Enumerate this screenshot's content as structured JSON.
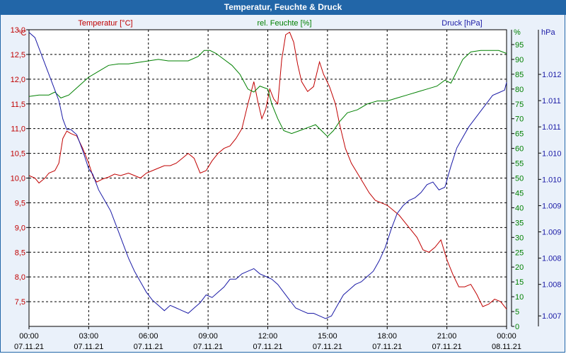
{
  "title": "Temperatur, Feuchte & Druck",
  "chart_data": {
    "type": "line",
    "title": "Temperatur, Feuchte & Druck",
    "x_ticks": [
      {
        "h": 0,
        "time": "00:00",
        "date": "07.11.21"
      },
      {
        "h": 3,
        "time": "03:00",
        "date": "07.11.21"
      },
      {
        "h": 6,
        "time": "06:00",
        "date": "07.11.21"
      },
      {
        "h": 9,
        "time": "09:00",
        "date": "07.11.21"
      },
      {
        "h": 12,
        "time": "12:00",
        "date": "07.11.21"
      },
      {
        "h": 15,
        "time": "15:00",
        "date": "07.11.21"
      },
      {
        "h": 18,
        "time": "18:00",
        "date": "07.11.21"
      },
      {
        "h": 21,
        "time": "21:00",
        "date": "07.11.21"
      },
      {
        "h": 24,
        "time": "00:00",
        "date": "08.11.21"
      }
    ],
    "x_range": [
      0,
      24
    ],
    "axes": {
      "temp": {
        "label": "Temperatur [°C]",
        "unit": "°C",
        "color": "#c00000",
        "range": [
          7.0,
          13.0
        ],
        "ticks": [
          "7,5",
          "8,0",
          "8,5",
          "9,0",
          "9,5",
          "10,0",
          "10,5",
          "11,0",
          "11,5",
          "12,0",
          "12,5",
          "13,0"
        ],
        "tick_values": [
          7.5,
          8.0,
          8.5,
          9.0,
          9.5,
          10.0,
          10.5,
          11.0,
          11.5,
          12.0,
          12.5,
          13.0
        ]
      },
      "hum": {
        "label": "rel. Feuchte [%]",
        "unit": "%",
        "color": "#008000",
        "range": [
          0,
          100
        ],
        "ticks": [
          "0",
          "5",
          "10",
          "15",
          "20",
          "25",
          "30",
          "35",
          "40",
          "45",
          "50",
          "55",
          "60",
          "65",
          "70",
          "75",
          "80",
          "85",
          "90",
          "95"
        ],
        "tick_values": [
          0,
          5,
          10,
          15,
          20,
          25,
          30,
          35,
          40,
          45,
          50,
          55,
          60,
          65,
          70,
          75,
          80,
          85,
          90,
          95
        ]
      },
      "press": {
        "label": "Druck [hPa]",
        "unit": "hPa",
        "color": "#1a1aa6",
        "range": [
          1006.7,
          1012.35
        ],
        "ticks": [
          "1.007",
          "1.008",
          "1.008",
          "1.009",
          "1.009",
          "1.010",
          "1.010",
          "1.011",
          "1.011",
          "1.012"
        ],
        "tick_values": [
          1006.9,
          1007.5,
          1008.0,
          1008.5,
          1009.0,
          1009.5,
          1010.0,
          1010.5,
          1011.0,
          1011.5
        ]
      }
    },
    "series": [
      {
        "name": "Temperatur",
        "axis": "temp",
        "color": "#c00000",
        "points": [
          [
            0,
            10.05
          ],
          [
            0.3,
            10.0
          ],
          [
            0.5,
            9.9
          ],
          [
            0.8,
            10.0
          ],
          [
            1.0,
            10.1
          ],
          [
            1.3,
            10.15
          ],
          [
            1.5,
            10.3
          ],
          [
            1.7,
            10.8
          ],
          [
            1.9,
            10.95
          ],
          [
            2.1,
            10.9
          ],
          [
            2.4,
            10.85
          ],
          [
            2.7,
            10.6
          ],
          [
            3.0,
            10.3
          ],
          [
            3.2,
            10.05
          ],
          [
            3.4,
            9.92
          ],
          [
            3.7,
            9.98
          ],
          [
            4.0,
            10.02
          ],
          [
            4.3,
            10.08
          ],
          [
            4.6,
            10.05
          ],
          [
            5.0,
            10.1
          ],
          [
            5.3,
            10.05
          ],
          [
            5.6,
            10.0
          ],
          [
            5.9,
            10.1
          ],
          [
            6.2,
            10.15
          ],
          [
            6.5,
            10.2
          ],
          [
            6.8,
            10.25
          ],
          [
            7.1,
            10.25
          ],
          [
            7.4,
            10.3
          ],
          [
            7.7,
            10.4
          ],
          [
            8.0,
            10.5
          ],
          [
            8.3,
            10.4
          ],
          [
            8.6,
            10.1
          ],
          [
            8.9,
            10.15
          ],
          [
            9.2,
            10.35
          ],
          [
            9.5,
            10.5
          ],
          [
            9.8,
            10.6
          ],
          [
            10.1,
            10.65
          ],
          [
            10.4,
            10.8
          ],
          [
            10.7,
            11.0
          ],
          [
            11.0,
            11.5
          ],
          [
            11.3,
            11.95
          ],
          [
            11.5,
            11.55
          ],
          [
            11.7,
            11.2
          ],
          [
            11.9,
            11.4
          ],
          [
            12.1,
            11.8
          ],
          [
            12.3,
            11.6
          ],
          [
            12.5,
            11.5
          ],
          [
            12.7,
            12.4
          ],
          [
            12.9,
            12.9
          ],
          [
            13.1,
            12.95
          ],
          [
            13.3,
            12.75
          ],
          [
            13.5,
            12.3
          ],
          [
            13.7,
            11.95
          ],
          [
            14.0,
            11.75
          ],
          [
            14.3,
            11.85
          ],
          [
            14.6,
            12.35
          ],
          [
            14.8,
            12.1
          ],
          [
            15.1,
            11.85
          ],
          [
            15.4,
            11.5
          ],
          [
            15.6,
            11.1
          ],
          [
            15.9,
            10.6
          ],
          [
            16.2,
            10.3
          ],
          [
            16.5,
            10.1
          ],
          [
            16.8,
            9.9
          ],
          [
            17.1,
            9.7
          ],
          [
            17.4,
            9.55
          ],
          [
            17.7,
            9.5
          ],
          [
            18.0,
            9.45
          ],
          [
            18.3,
            9.35
          ],
          [
            18.6,
            9.25
          ],
          [
            18.9,
            9.1
          ],
          [
            19.2,
            8.95
          ],
          [
            19.5,
            8.8
          ],
          [
            19.8,
            8.55
          ],
          [
            20.1,
            8.5
          ],
          [
            20.4,
            8.6
          ],
          [
            20.7,
            8.75
          ],
          [
            21.0,
            8.35
          ],
          [
            21.3,
            8.05
          ],
          [
            21.6,
            7.8
          ],
          [
            21.9,
            7.8
          ],
          [
            22.2,
            7.85
          ],
          [
            22.5,
            7.65
          ],
          [
            22.8,
            7.4
          ],
          [
            23.1,
            7.45
          ],
          [
            23.4,
            7.55
          ],
          [
            23.7,
            7.5
          ],
          [
            24.0,
            7.35
          ]
        ]
      },
      {
        "name": "rel. Feuchte",
        "axis": "hum",
        "color": "#008000",
        "points": [
          [
            0,
            77.5
          ],
          [
            0.5,
            78
          ],
          [
            1.0,
            78
          ],
          [
            1.3,
            79
          ],
          [
            1.6,
            77
          ],
          [
            2.0,
            78
          ],
          [
            2.5,
            81
          ],
          [
            3.0,
            84
          ],
          [
            3.5,
            86
          ],
          [
            4.0,
            88
          ],
          [
            4.5,
            88.5
          ],
          [
            5.0,
            88.5
          ],
          [
            5.5,
            89
          ],
          [
            6.0,
            89.5
          ],
          [
            6.5,
            90
          ],
          [
            7.0,
            89.5
          ],
          [
            7.5,
            89.5
          ],
          [
            8.0,
            89.5
          ],
          [
            8.5,
            91
          ],
          [
            8.8,
            93
          ],
          [
            9.1,
            93
          ],
          [
            9.4,
            92
          ],
          [
            9.8,
            90
          ],
          [
            10.2,
            88
          ],
          [
            10.6,
            85
          ],
          [
            11.0,
            80
          ],
          [
            11.3,
            79
          ],
          [
            11.6,
            81
          ],
          [
            12.0,
            80
          ],
          [
            12.2,
            75
          ],
          [
            12.5,
            70
          ],
          [
            12.8,
            66
          ],
          [
            13.2,
            65
          ],
          [
            13.6,
            66
          ],
          [
            14.0,
            67
          ],
          [
            14.4,
            68
          ],
          [
            14.7,
            66
          ],
          [
            15.0,
            64
          ],
          [
            15.3,
            66
          ],
          [
            15.6,
            69
          ],
          [
            16.0,
            72
          ],
          [
            16.5,
            73
          ],
          [
            17.0,
            75
          ],
          [
            17.5,
            76
          ],
          [
            18.0,
            76
          ],
          [
            18.5,
            77
          ],
          [
            19.0,
            78
          ],
          [
            19.5,
            79
          ],
          [
            20.0,
            80
          ],
          [
            20.5,
            81
          ],
          [
            20.9,
            83
          ],
          [
            21.2,
            82
          ],
          [
            21.5,
            86
          ],
          [
            21.8,
            90
          ],
          [
            22.2,
            92.5
          ],
          [
            22.7,
            93
          ],
          [
            23.2,
            93
          ],
          [
            23.6,
            93
          ],
          [
            24.0,
            92
          ]
        ]
      },
      {
        "name": "Druck",
        "axis": "press",
        "color": "#1a1aa6",
        "points": [
          [
            0,
            1012.3
          ],
          [
            0.3,
            1012.2
          ],
          [
            0.6,
            1011.9
          ],
          [
            0.9,
            1011.6
          ],
          [
            1.2,
            1011.3
          ],
          [
            1.5,
            1011.0
          ],
          [
            1.7,
            1010.65
          ],
          [
            1.9,
            1010.45
          ],
          [
            2.1,
            1010.45
          ],
          [
            2.4,
            1010.35
          ],
          [
            2.7,
            1010.05
          ],
          [
            3.0,
            1009.7
          ],
          [
            3.2,
            1009.6
          ],
          [
            3.5,
            1009.3
          ],
          [
            3.8,
            1009.1
          ],
          [
            4.1,
            1008.9
          ],
          [
            4.4,
            1008.6
          ],
          [
            4.7,
            1008.3
          ],
          [
            5.0,
            1008.0
          ],
          [
            5.3,
            1007.75
          ],
          [
            5.6,
            1007.55
          ],
          [
            5.9,
            1007.35
          ],
          [
            6.2,
            1007.2
          ],
          [
            6.5,
            1007.1
          ],
          [
            6.8,
            1007.0
          ],
          [
            7.1,
            1007.1
          ],
          [
            7.4,
            1007.05
          ],
          [
            7.7,
            1007.0
          ],
          [
            8.0,
            1006.95
          ],
          [
            8.3,
            1007.05
          ],
          [
            8.6,
            1007.15
          ],
          [
            8.9,
            1007.3
          ],
          [
            9.2,
            1007.25
          ],
          [
            9.5,
            1007.35
          ],
          [
            9.8,
            1007.45
          ],
          [
            10.1,
            1007.6
          ],
          [
            10.4,
            1007.6
          ],
          [
            10.7,
            1007.7
          ],
          [
            11.0,
            1007.75
          ],
          [
            11.3,
            1007.8
          ],
          [
            11.6,
            1007.7
          ],
          [
            11.9,
            1007.65
          ],
          [
            12.2,
            1007.6
          ],
          [
            12.5,
            1007.5
          ],
          [
            12.8,
            1007.35
          ],
          [
            13.1,
            1007.2
          ],
          [
            13.4,
            1007.05
          ],
          [
            13.7,
            1007.0
          ],
          [
            14.0,
            1006.95
          ],
          [
            14.3,
            1006.95
          ],
          [
            14.6,
            1006.9
          ],
          [
            14.9,
            1006.85
          ],
          [
            15.2,
            1006.9
          ],
          [
            15.5,
            1007.1
          ],
          [
            15.8,
            1007.3
          ],
          [
            16.1,
            1007.4
          ],
          [
            16.4,
            1007.5
          ],
          [
            16.7,
            1007.55
          ],
          [
            17.0,
            1007.65
          ],
          [
            17.3,
            1007.75
          ],
          [
            17.6,
            1007.95
          ],
          [
            17.9,
            1008.2
          ],
          [
            18.2,
            1008.55
          ],
          [
            18.5,
            1008.85
          ],
          [
            18.8,
            1009.0
          ],
          [
            19.1,
            1009.1
          ],
          [
            19.4,
            1009.15
          ],
          [
            19.7,
            1009.25
          ],
          [
            20.0,
            1009.4
          ],
          [
            20.3,
            1009.45
          ],
          [
            20.6,
            1009.3
          ],
          [
            20.9,
            1009.35
          ],
          [
            21.2,
            1009.75
          ],
          [
            21.5,
            1010.1
          ],
          [
            21.8,
            1010.3
          ],
          [
            22.1,
            1010.5
          ],
          [
            22.4,
            1010.65
          ],
          [
            22.7,
            1010.8
          ],
          [
            23.0,
            1010.95
          ],
          [
            23.3,
            1011.1
          ],
          [
            23.6,
            1011.15
          ],
          [
            23.9,
            1011.2
          ],
          [
            24.0,
            1011.35
          ]
        ]
      }
    ]
  }
}
